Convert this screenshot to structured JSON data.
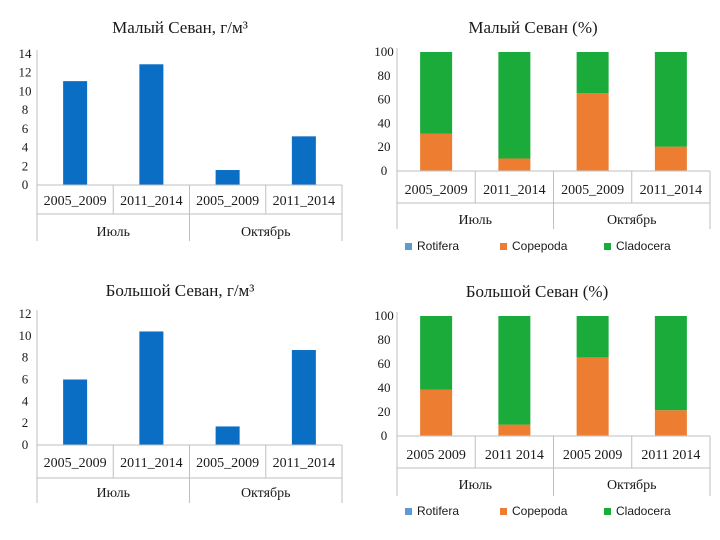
{
  "chart_data": [
    {
      "id": "small-abs",
      "type": "bar",
      "title": "Малый Севан, г/м³",
      "groups": [
        "Июль",
        "Октябрь"
      ],
      "categories": [
        "2005_2009",
        "2011_2014",
        "2005_2009",
        "2011_2014"
      ],
      "values": [
        11.1,
        12.9,
        1.6,
        5.2
      ],
      "ylim": [
        0,
        14
      ],
      "yticks": [
        0,
        2,
        4,
        6,
        8,
        10,
        12,
        14
      ],
      "colors": {
        "bar": "#0a6ec4"
      }
    },
    {
      "id": "small-pct",
      "type": "bar",
      "stacked": true,
      "title": "Малый Севан (%)",
      "groups": [
        "Июль",
        "Октябрь"
      ],
      "categories": [
        "2005_2009",
        "2011_2014",
        "2005_2009",
        "2011_2014"
      ],
      "series": [
        {
          "name": "Rotifera",
          "values": [
            0.5,
            0.5,
            0.5,
            0.5
          ],
          "color": "#5b9bd5"
        },
        {
          "name": "Copepoda",
          "values": [
            31,
            10,
            65,
            20
          ],
          "color": "#ed7d31"
        },
        {
          "name": "Cladocera",
          "values": [
            68.5,
            89.5,
            34.5,
            79.5
          ],
          "color": "#1aab3a"
        }
      ],
      "ylim": [
        0,
        100
      ],
      "yticks": [
        0,
        20,
        40,
        60,
        80,
        100
      ],
      "legend": "bottom"
    },
    {
      "id": "big-abs",
      "type": "bar",
      "title": "Большой Севан, г/м³",
      "groups": [
        "Июль",
        "Октябрь"
      ],
      "categories": [
        "2005_2009",
        "2011_2014",
        "2005_2009",
        "2011_2014"
      ],
      "values": [
        6.0,
        10.4,
        1.7,
        8.7
      ],
      "ylim": [
        0,
        12
      ],
      "yticks": [
        0,
        2,
        4,
        6,
        8,
        10,
        12
      ],
      "colors": {
        "bar": "#0a6ec4"
      }
    },
    {
      "id": "big-pct",
      "type": "bar",
      "stacked": true,
      "title": "Большой Севан (%)",
      "groups": [
        "Июль",
        "Октябрь"
      ],
      "categories": [
        "2005 2009",
        "2011 2014",
        "2005 2009",
        "2011 2014"
      ],
      "series": [
        {
          "name": "Rotifera",
          "values": [
            0.5,
            0.5,
            0.5,
            0.5
          ],
          "color": "#5b9bd5"
        },
        {
          "name": "Copepoda",
          "values": [
            38,
            9,
            65,
            21
          ],
          "color": "#ed7d31"
        },
        {
          "name": "Cladocera",
          "values": [
            61.5,
            90.5,
            34.5,
            78.5
          ],
          "color": "#1aab3a"
        }
      ],
      "ylim": [
        0,
        100
      ],
      "yticks": [
        0,
        20,
        40,
        60,
        80,
        100
      ],
      "legend": "bottom"
    }
  ]
}
